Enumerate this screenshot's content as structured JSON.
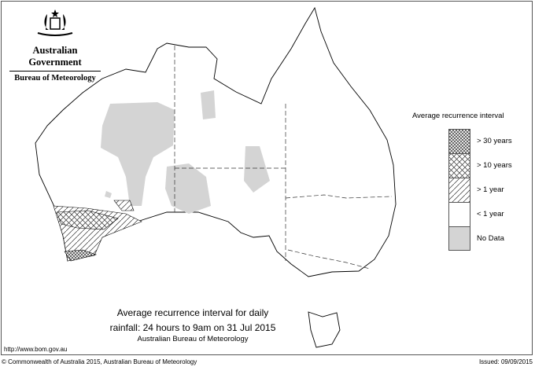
{
  "header": {
    "government": "Australian Government",
    "bureau": "Bureau of Meteorology",
    "logo": "commonwealth-coat-of-arms"
  },
  "legend": {
    "title": "Average recurrence interval",
    "items": [
      {
        "label": "> 30 years",
        "pattern": "dense-crosshatch"
      },
      {
        "label": "> 10 years",
        "pattern": "crosshatch"
      },
      {
        "label": "> 1 year",
        "pattern": "diagonal-hatch"
      },
      {
        "label": "< 1 year",
        "pattern": "white"
      },
      {
        "label": "No Data",
        "pattern": "gray",
        "color": "#d4d4d4"
      }
    ]
  },
  "caption": {
    "line1": "Average recurrence interval for daily",
    "line2": "rainfall: 24 hours to 9am on 31 Jul 2015",
    "source": "Australian Bureau of Meteorology"
  },
  "footer": {
    "url": "http://www.bom.gov.au",
    "copyright": "© Commonwealth of Australia 2015, Australian Bureau of Meteorology",
    "issued": "Issued: 09/09/2015"
  }
}
